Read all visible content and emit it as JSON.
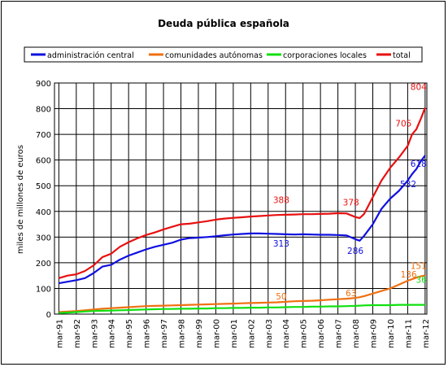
{
  "chart_data": {
    "type": "line",
    "title": "Deuda pública española",
    "ylabel": "miles de millones de euros",
    "xlabel": "",
    "ylim": [
      0,
      900
    ],
    "yticks": [
      0,
      100,
      200,
      300,
      400,
      500,
      600,
      700,
      800,
      900
    ],
    "grid": true,
    "legend_position": "top",
    "x_ticks": [
      "mar-91",
      "mar-92",
      "mar-93",
      "mar-94",
      "mar-95",
      "mar-96",
      "mar-97",
      "mar-98",
      "mar-99",
      "mar-00",
      "mar-01",
      "mar-02",
      "mar-03",
      "mar-04",
      "mar-05",
      "mar-06",
      "mar-07",
      "mar-08",
      "mar-09",
      "mar-10",
      "mar-11",
      "mar-12"
    ],
    "x": [
      1991.25,
      1991.75,
      1992.25,
      1992.75,
      1993.25,
      1993.75,
      1994.25,
      1994.75,
      1995.25,
      1995.75,
      1996.25,
      1996.75,
      1997.25,
      1997.75,
      1998.25,
      1998.75,
      1999.25,
      1999.75,
      2000.25,
      2000.75,
      2001.25,
      2001.75,
      2002.25,
      2002.75,
      2003.25,
      2003.75,
      2004.25,
      2004.75,
      2005.25,
      2005.75,
      2006.25,
      2006.75,
      2007.25,
      2007.75,
      2008.25,
      2008.5,
      2008.75,
      2009.25,
      2009.75,
      2010.25,
      2010.75,
      2011.25,
      2011.5,
      2011.75,
      2012.0,
      2012.25
    ],
    "series": [
      {
        "name": "administración central",
        "color": "#1010e0",
        "values": [
          120,
          126,
          132,
          140,
          160,
          185,
          192,
          212,
          228,
          240,
          252,
          262,
          270,
          278,
          290,
          296,
          298,
          300,
          303,
          307,
          310,
          312,
          314,
          314,
          313,
          312,
          311,
          310,
          311,
          310,
          309,
          309,
          308,
          306,
          292,
          286,
          305,
          350,
          410,
          450,
          480,
          520,
          545,
          565,
          595,
          618
        ]
      },
      {
        "name": "comunidades autónomas",
        "color": "#f07010",
        "values": [
          8,
          10,
          12,
          15,
          18,
          21,
          23,
          25,
          27,
          29,
          31,
          32,
          33,
          34,
          35,
          36,
          37,
          38,
          39,
          40,
          41,
          42,
          43,
          44,
          45,
          46,
          48,
          50,
          51,
          52,
          54,
          56,
          58,
          60,
          63,
          66,
          70,
          80,
          90,
          100,
          115,
          130,
          136,
          142,
          147,
          151
        ]
      },
      {
        "name": "corporaciones locales",
        "color": "#10e010",
        "values": [
          4,
          6,
          8,
          10,
          12,
          13,
          14,
          15,
          16,
          17,
          18,
          19,
          20,
          20,
          21,
          21,
          22,
          22,
          23,
          23,
          24,
          24,
          25,
          25,
          26,
          26,
          27,
          28,
          28,
          29,
          29,
          30,
          30,
          31,
          32,
          33,
          34,
          35,
          35,
          35,
          36,
          36,
          36,
          36,
          36,
          36
        ]
      },
      {
        "name": "total",
        "color": "#e81010",
        "values": [
          140,
          150,
          155,
          168,
          190,
          222,
          235,
          262,
          280,
          295,
          308,
          318,
          330,
          340,
          350,
          352,
          357,
          362,
          368,
          372,
          375,
          377,
          380,
          382,
          384,
          386,
          387,
          388,
          389,
          389,
          390,
          391,
          393,
          392,
          378,
          374,
          390,
          455,
          520,
          570,
          610,
          655,
          700,
          720,
          760,
          804
        ]
      }
    ],
    "annotations": [
      {
        "text": "388",
        "series": "total",
        "x": 2004.0,
        "value": 388
      },
      {
        "text": "378",
        "series": "total",
        "x": 2008.0,
        "value": 378
      },
      {
        "text": "705",
        "series": "total",
        "x": 2011.2,
        "value": 705
      },
      {
        "text": "804",
        "series": "total",
        "x": 2012.25,
        "value": 804
      },
      {
        "text": "313",
        "series": "administración central",
        "x": 2004.0,
        "value": 313
      },
      {
        "text": "286",
        "series": "administración central",
        "x": 2008.25,
        "value": 286
      },
      {
        "text": "532",
        "series": "administración central",
        "x": 2011.0,
        "value": 532
      },
      {
        "text": "618",
        "series": "administración central",
        "x": 2012.25,
        "value": 618
      },
      {
        "text": "50",
        "series": "comunidades autónomas",
        "x": 2004.0,
        "value": 50
      },
      {
        "text": "63",
        "series": "comunidades autónomas",
        "x": 2008.0,
        "value": 63
      },
      {
        "text": "136",
        "series": "comunidades autónomas",
        "x": 2011.4,
        "value": 136
      },
      {
        "text": "151",
        "series": "comunidades autónomas",
        "x": 2012.25,
        "value": 151
      },
      {
        "text": "36",
        "series": "corporaciones locales",
        "x": 2012.25,
        "value": 36
      }
    ]
  }
}
